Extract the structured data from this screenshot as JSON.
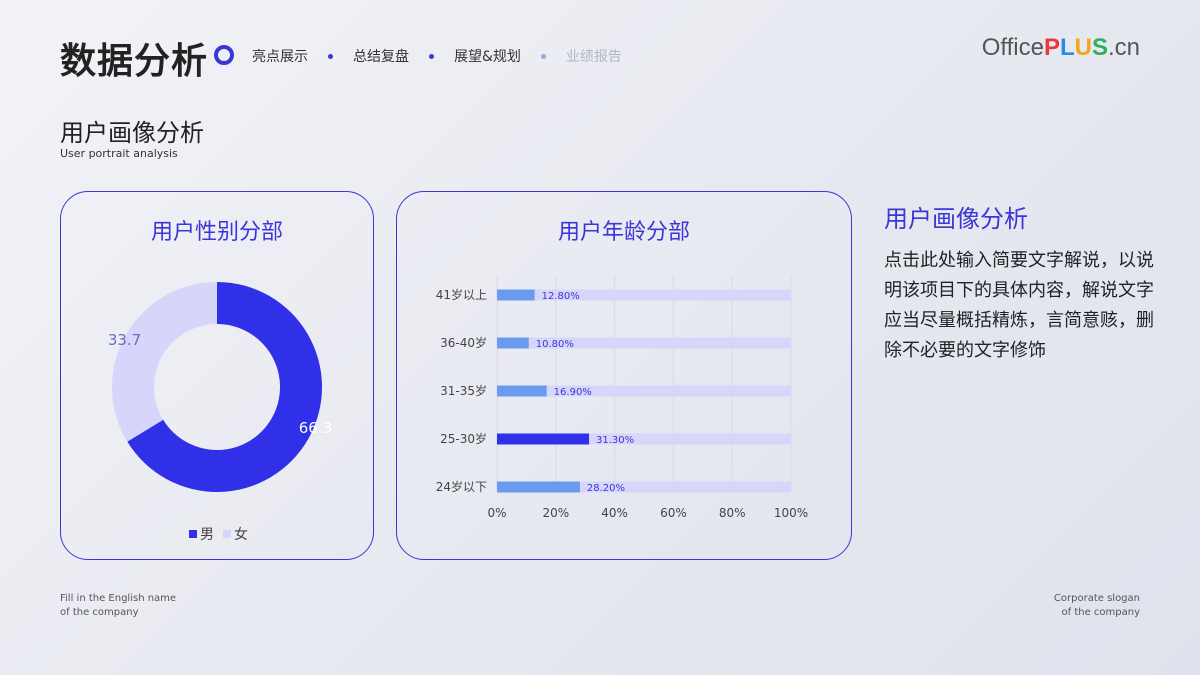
{
  "header": {
    "title": "数据分析",
    "nav": [
      {
        "label": "亮点展示",
        "dim": false
      },
      {
        "label": "总结复盘",
        "dim": false
      },
      {
        "label": "展望&规划",
        "dim": false
      },
      {
        "label": "业绩报告",
        "dim": true
      }
    ],
    "logo": {
      "office": "Office",
      "p": "P",
      "l": "L",
      "u": "U",
      "s": "S",
      "cn": ".cn"
    }
  },
  "section": {
    "title": "用户画像分析",
    "subtitle": "User portrait  analysis"
  },
  "side": {
    "title": "用户画像分析",
    "body": "点击此处输入简要文字解说，以说明该项目下的具体内容，解说文字应当尽量概括精炼，言简意赅，删除不必要的文字修饰"
  },
  "footer": {
    "left_line1": "Fill in the English name",
    "left_line2": "of the company",
    "right_line1": "Corporate slogan",
    "right_line2": "of the company"
  },
  "colors": {
    "accent": "#3c35d8",
    "bar_light": "#6a9bf0",
    "track": "#d6d6fb",
    "female": "#d6d6fb",
    "male": "#3030e8"
  },
  "chart_data": [
    {
      "type": "pie",
      "title": "用户性别分部",
      "categories": [
        "男",
        "女"
      ],
      "values": [
        66.3,
        33.7
      ],
      "labels": [
        "66.3",
        "33.7"
      ],
      "donut": true,
      "legend_placement": "bottom"
    },
    {
      "type": "bar",
      "orientation": "horizontal",
      "title": "用户年龄分部",
      "categories": [
        "41岁以上",
        "36-40岁",
        "31-35岁",
        "25-30岁",
        "24岁以下"
      ],
      "values": [
        12.8,
        10.8,
        16.9,
        31.3,
        28.2
      ],
      "labels": [
        "12.80%",
        "10.80%",
        "16.90%",
        "31.30%",
        "28.20%"
      ],
      "highlight_index": 3,
      "xlim": [
        0,
        100
      ],
      "xticks": [
        "0%",
        "20%",
        "40%",
        "60%",
        "80%",
        "100%"
      ],
      "grid": true
    }
  ]
}
